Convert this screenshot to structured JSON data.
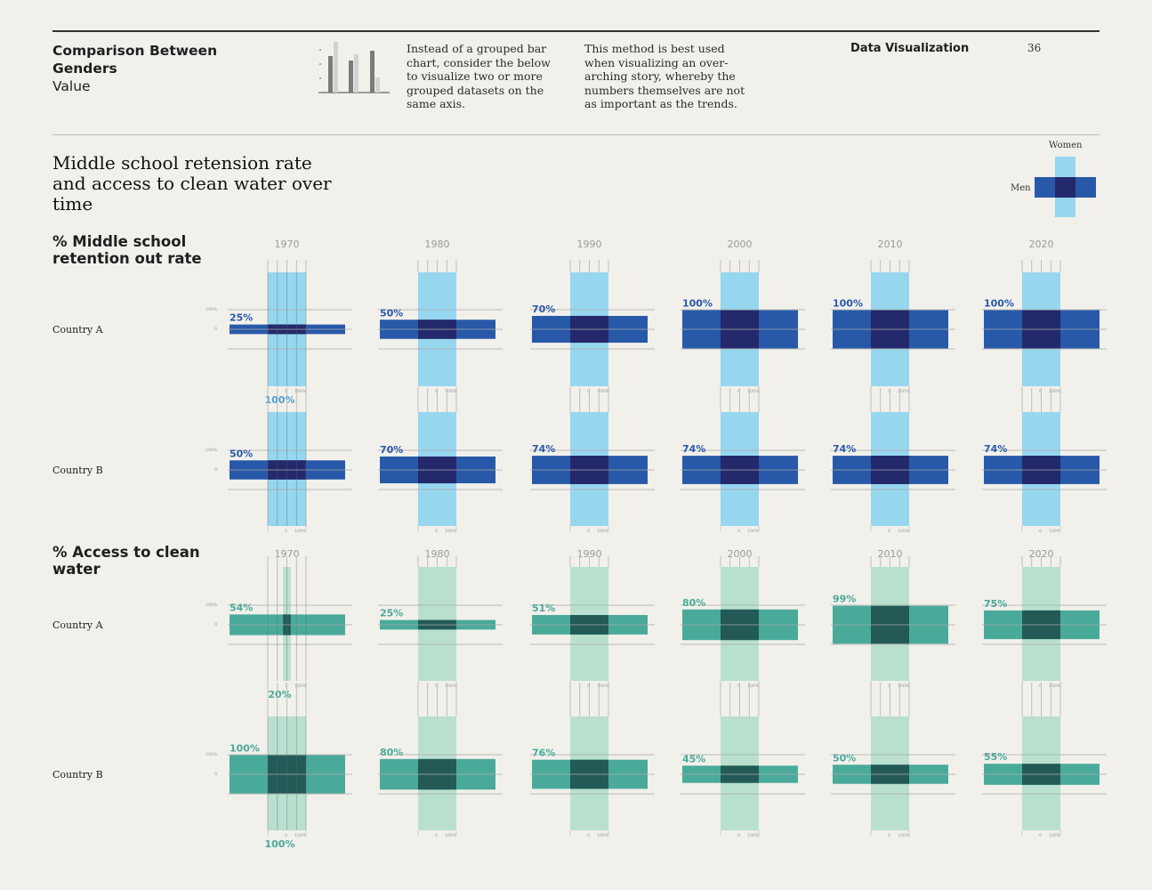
{
  "header": {
    "title": "Comparison Between Genders",
    "subtitle": "Value",
    "note1": "Instead of a grouped bar chart, consider the below to visualize two or more grouped datasets on the same axis.",
    "note2": "This method is best used when visualizing an over-arching story, whereby the numbers themselves are not as important as the trends.",
    "section": "Data Visualization",
    "page": "36"
  },
  "chart_title": "Middle school retension rate and access to clean water over time",
  "legend": {
    "women": "Women",
    "men": "Men"
  },
  "colors": {
    "blue_men": "#2859a8",
    "blue_women": "#97d6ef",
    "blue_overlap": "#23296a",
    "teal_men": "#4aaa9a",
    "teal_women": "#b9e0cf",
    "teal_overlap": "#235a56"
  },
  "chart_data": [
    {
      "type": "cross-bar",
      "section_title": "% Middle school retention out rate",
      "years": [
        "1970",
        "1980",
        "1990",
        "2000",
        "2010",
        "2020"
      ],
      "axis_ticks": [
        "100%",
        "0"
      ],
      "countries": [
        {
          "name": "Country A",
          "men": [
            25,
            50,
            70,
            100,
            100,
            100
          ],
          "women": [
            100,
            100,
            100,
            100,
            100,
            100
          ],
          "labels": [
            "25%",
            "50%",
            "70%",
            "100%",
            "100%",
            "100%"
          ],
          "women_label": "100%"
        },
        {
          "name": "Country B",
          "men": [
            50,
            70,
            74,
            74,
            74,
            74
          ],
          "women": [
            100,
            100,
            100,
            100,
            100,
            100
          ],
          "labels": [
            "50%",
            "70%",
            "74%",
            "74%",
            "74%",
            "74%"
          ],
          "women_label": ""
        }
      ]
    },
    {
      "type": "cross-bar",
      "section_title": "% Access to clean water",
      "years": [
        "1970",
        "1980",
        "1990",
        "2000",
        "2010",
        "2020"
      ],
      "axis_ticks": [
        "100%",
        "0"
      ],
      "countries": [
        {
          "name": "Country A",
          "men": [
            54,
            25,
            51,
            80,
            99,
            75
          ],
          "women": [
            20,
            100,
            100,
            100,
            100,
            100
          ],
          "labels": [
            "54%",
            "25%",
            "51%",
            "80%",
            "99%",
            "75%"
          ],
          "women_label": "20%"
        },
        {
          "name": "Country B",
          "men": [
            100,
            80,
            76,
            45,
            50,
            55
          ],
          "women": [
            100,
            100,
            100,
            100,
            100,
            100
          ],
          "labels": [
            "100%",
            "80%",
            "76%",
            "45%",
            "50%",
            "55%"
          ],
          "women_label": "100%"
        }
      ]
    }
  ]
}
